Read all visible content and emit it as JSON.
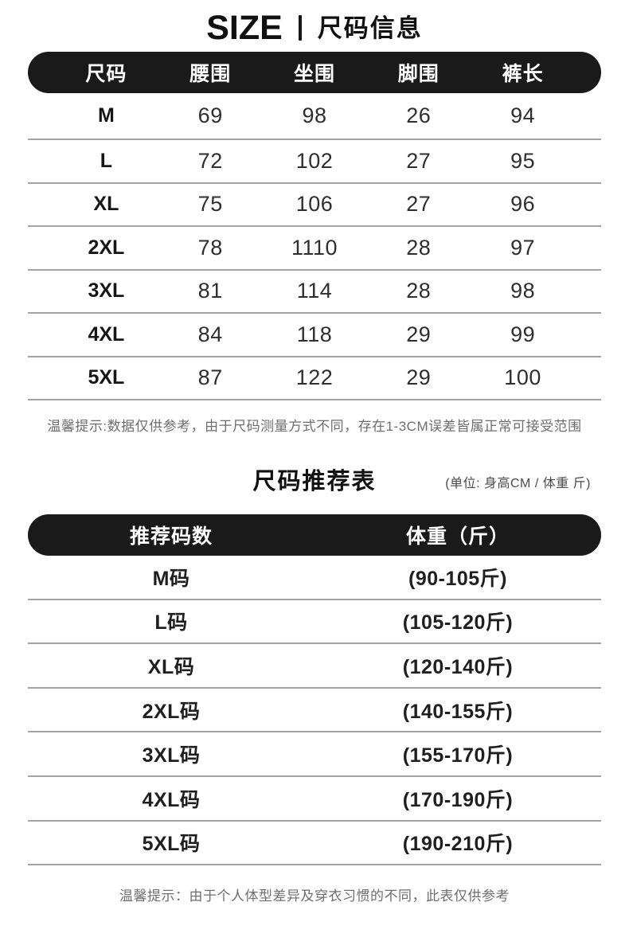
{
  "header": {
    "brand": "SIZE",
    "title": "尺码信息"
  },
  "size_table": {
    "headers": [
      "尺码",
      "腰围",
      "坐围",
      "脚围",
      "裤长"
    ],
    "rows": [
      [
        "M",
        "69",
        "98",
        "26",
        "94"
      ],
      [
        "L",
        "72",
        "102",
        "27",
        "95"
      ],
      [
        "XL",
        "75",
        "106",
        "27",
        "96"
      ],
      [
        "2XL",
        "78",
        "1110",
        "28",
        "97"
      ],
      [
        "3XL",
        "81",
        "114",
        "28",
        "98"
      ],
      [
        "4XL",
        "84",
        "118",
        "29",
        "99"
      ],
      [
        "5XL",
        "87",
        "122",
        "29",
        "100"
      ]
    ],
    "note": "温馨提示:数据仅供参考，由于尺码测量方式不同，存在1-3CM误差皆属正常可接受范围"
  },
  "recommend_table": {
    "title": "尺码推荐表",
    "unit_note": "(单位: 身高CM / 体重 斤)",
    "headers": [
      "推荐码数",
      "体重（斤）"
    ],
    "rows": [
      [
        "M码",
        "(90-105斤)"
      ],
      [
        "L码",
        "(105-120斤)"
      ],
      [
        "XL码",
        "(120-140斤)"
      ],
      [
        "2XL码",
        "(140-155斤)"
      ],
      [
        "3XL码",
        "(155-170斤)"
      ],
      [
        "4XL码",
        "(170-190斤)"
      ],
      [
        "5XL码",
        "(190-210斤)"
      ]
    ],
    "note": "温馨提示：由于个人体型差异及穿衣习惯的不同，此表仅供参考"
  },
  "colors": {
    "header_bar": "#1a1a1a",
    "divider": "#a3a3a3",
    "note_text": "#6d6d6d"
  }
}
